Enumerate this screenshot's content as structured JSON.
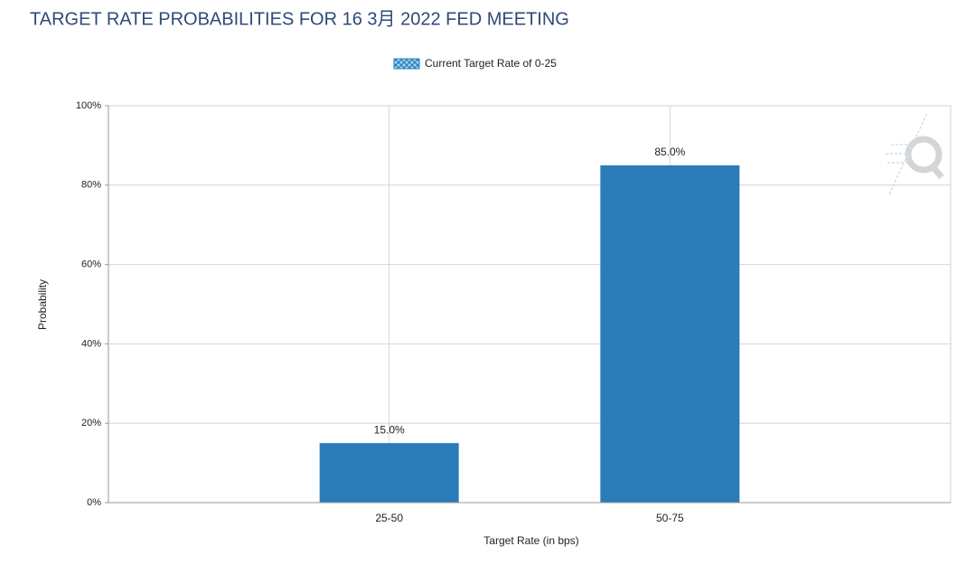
{
  "chart_data": {
    "type": "bar",
    "title": "TARGET RATE PROBABILITIES FOR 16 3月 2022 FED MEETING",
    "legend": "Current Target Rate of 0-25",
    "x_label": "Target Rate (in bps)",
    "y_label": "Probability",
    "categories": [
      "25-50",
      "50-75"
    ],
    "values": [
      15,
      85
    ],
    "value_labels": [
      "15.0%",
      "85.0%"
    ],
    "color": "#2a7db8",
    "ylim": [
      0,
      100
    ],
    "yticks": [
      {
        "value": 0,
        "label": "0%"
      },
      {
        "value": 20,
        "label": "20%"
      },
      {
        "value": 40,
        "label": "40%"
      },
      {
        "value": 60,
        "label": "60%"
      },
      {
        "value": 80,
        "label": "80%"
      },
      {
        "value": 100,
        "label": "100%"
      }
    ],
    "grid": true
  }
}
